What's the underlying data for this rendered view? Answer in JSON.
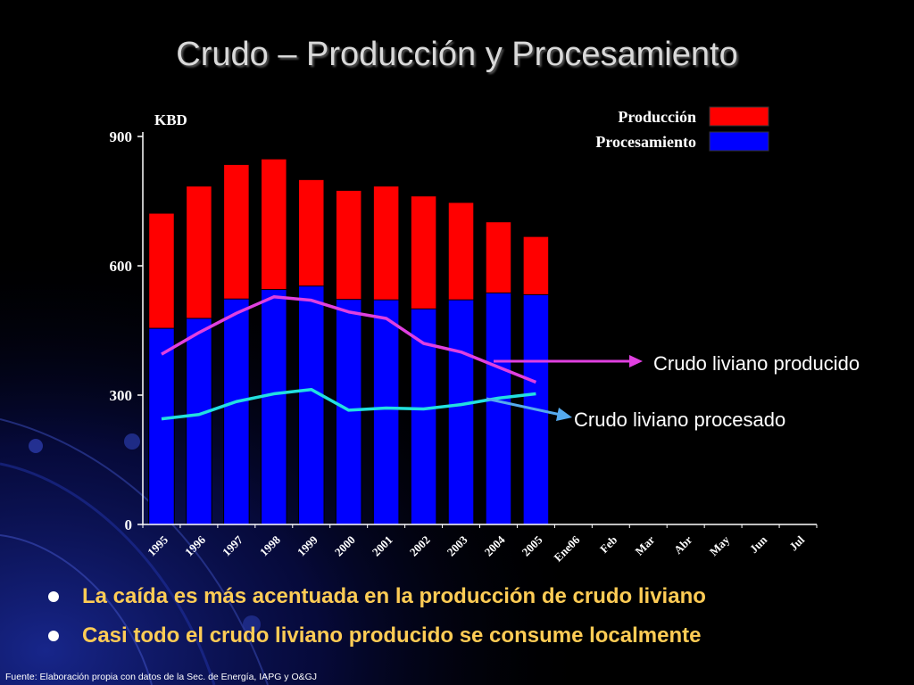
{
  "page": {
    "title": "Crudo – Producción y Procesamiento",
    "bullets": [
      "La caída es más acentuada en la producción de crudo liviano",
      "Casi todo el crudo liviano producido se consume localmente"
    ],
    "source": "Fuente: Elaboración propia con datos de la Sec. de Energía, IAPG y O&GJ"
  },
  "colors": {
    "produccion": "#ff0000",
    "procesamiento": "#0000ff",
    "liviano_producido": "#e040e0",
    "liviano_procesado": "#22e0e0",
    "axis": "#ffffff"
  },
  "chart_data": {
    "type": "bar",
    "ylabel": "KBD",
    "ylim": [
      0,
      900
    ],
    "yticks": [
      0,
      300,
      600,
      900
    ],
    "categories": [
      "1995",
      "1996",
      "1997",
      "1998",
      "1999",
      "2000",
      "2001",
      "2002",
      "2003",
      "2004",
      "2005",
      "Ene06",
      "Feb",
      "Mar",
      "Abr",
      "May",
      "Jun",
      "Jul"
    ],
    "series": [
      {
        "name": "Producción",
        "kind": "bar",
        "values": [
          722,
          785,
          835,
          848,
          800,
          775,
          785,
          762,
          747,
          702,
          668,
          null,
          null,
          null,
          null,
          null,
          null,
          null
        ]
      },
      {
        "name": "Procesamiento",
        "kind": "bar",
        "values": [
          455,
          478,
          523,
          545,
          553,
          522,
          521,
          500,
          521,
          537,
          533,
          null,
          null,
          null,
          null,
          null,
          null,
          null
        ]
      },
      {
        "name": "Crudo liviano producido",
        "kind": "line",
        "values": [
          395,
          445,
          490,
          528,
          520,
          493,
          478,
          420,
          400,
          365,
          330,
          null,
          null,
          null,
          null,
          null,
          null,
          null
        ]
      },
      {
        "name": "Crudo liviano procesado",
        "kind": "line",
        "values": [
          245,
          255,
          285,
          303,
          313,
          265,
          270,
          268,
          278,
          293,
          303,
          null,
          null,
          null,
          null,
          null,
          null,
          null
        ]
      }
    ],
    "legend": {
      "placement": "top-right",
      "items": [
        "Producción",
        "Procesamiento"
      ]
    },
    "annotations": [
      "Crudo liviano producido",
      "Crudo liviano procesado"
    ],
    "grid": false
  }
}
